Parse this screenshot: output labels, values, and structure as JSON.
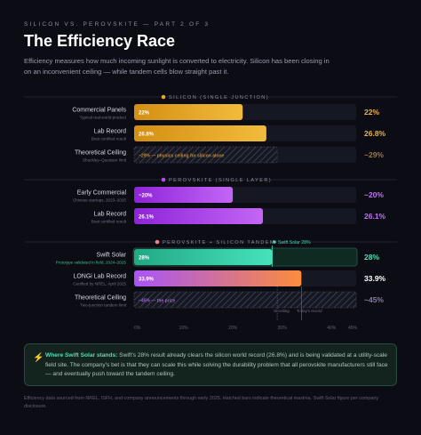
{
  "header": {
    "kicker": "SILICON VS. PEROVSKITE — PART 2 OF 3",
    "title": "The Efficiency Race",
    "subtitle": "Efficiency measures how much incoming sunlight is converted to electricity. Silicon has been closing in on an inconvenient ceiling — while tandem cells blow straight past it."
  },
  "colors": {
    "silicon": "#e8a628",
    "perovskite": "#b34ef0",
    "tandem_swift": "#3dd9b0",
    "tandem_longi_start": "#a855f7",
    "tandem_longi_end": "#fb8c3c",
    "ceiling": "#8a8c9c",
    "background": "#0c0d14"
  },
  "chart_data": {
    "type": "bar",
    "orientation": "horizontal",
    "xlabel": "",
    "xlim": [
      0,
      45
    ],
    "x_ticks": [
      "0%",
      "10%",
      "20%",
      "30%",
      "40%",
      "45%"
    ],
    "x_tick_values": [
      0,
      10,
      20,
      30,
      40,
      45
    ],
    "groups": [
      {
        "name": "SILICON (SINGLE JUNCTION)",
        "color": "#e8a628",
        "bars": [
          {
            "label": "Commercial Panels",
            "sublabel": "Typical real-world product",
            "value": 22,
            "bar_text": "22%",
            "value_text": "22%",
            "style": "solid"
          },
          {
            "label": "Lab Record",
            "sublabel": "Best certified result",
            "value": 26.8,
            "bar_text": "26.8%",
            "value_text": "26.8%",
            "style": "solid"
          },
          {
            "label": "Theoretical Ceiling",
            "sublabel": "Shockley–Queisser limit",
            "value": 29,
            "bar_text": "~29% — physics ceiling for silicon alone",
            "value_text": "~29%",
            "style": "hatched"
          }
        ]
      },
      {
        "name": "PEROVSKITE (SINGLE LAYER)",
        "color": "#b34ef0",
        "bars": [
          {
            "label": "Early Commercial",
            "sublabel": "Chinese startups, 2023–2025",
            "value": 20,
            "bar_text": "~20%",
            "value_text": "~20%",
            "style": "solid"
          },
          {
            "label": "Lab Record",
            "sublabel": "Best certified result",
            "value": 26.1,
            "bar_text": "26.1%",
            "value_text": "26.1%",
            "style": "solid"
          }
        ]
      },
      {
        "name": "PEROVSKITE + SILICON TANDEM",
        "color": "#f47f86",
        "bars": [
          {
            "label": "Swift Solar",
            "sublabel": "Prototype validated in field, 2024–2025",
            "value": 28,
            "bar_text": "28%",
            "value_text": "28%",
            "style": "highlight"
          },
          {
            "label": "LONGi Lab Record",
            "sublabel": "Certified by NREL, April 2025",
            "value": 33.9,
            "bar_text": "33.9%",
            "value_text": "33.9%",
            "style": "gradient"
          },
          {
            "label": "Theoretical Ceiling",
            "sublabel": "Two-junction tandem limit",
            "value": 45,
            "bar_text": "~45% — the prize",
            "value_text": "~45%",
            "style": "hatched"
          }
        ]
      }
    ],
    "annotations": [
      {
        "text": "Swift Solar 28%",
        "x": 28
      },
      {
        "text": "Si ceiling",
        "x": 29
      },
      {
        "text": "Today's record",
        "x": 33.9
      }
    ]
  },
  "callout": {
    "icon": "lightning-icon",
    "icon_glyph": "⚡",
    "lead": "Where Swift Solar stands:",
    "body": " Swift's 28% result already clears the silicon world record (26.8%) and is being validated at a utility-scale field site. The company's bet is that they can scale this while solving the durability problem that all perovskite manufacturers still face — and eventually push toward the tandem ceiling."
  },
  "footnote": "Efficiency data sourced from NREL, ISFH, and company announcements through early 2025. Hatched bars indicate theoretical maxima. Swift Solar figure per company disclosure."
}
